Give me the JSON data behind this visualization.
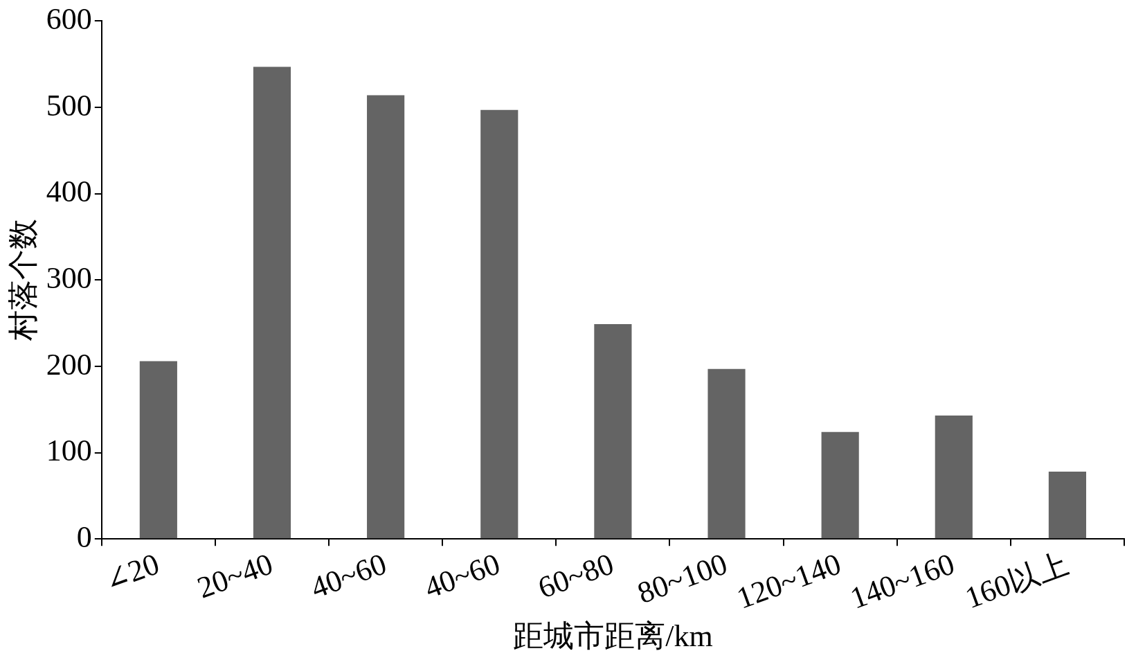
{
  "chart_data": {
    "type": "bar",
    "xlabel": "距城市距离/km",
    "ylabel": "村落个数",
    "categories": [
      "∠20",
      "20~40",
      "40~60",
      "40~60",
      "60~80",
      "80~100",
      "120~140",
      "140~160",
      "160以上"
    ],
    "values": [
      206,
      547,
      514,
      497,
      249,
      197,
      124,
      143,
      78
    ],
    "color": "#646464",
    "ylim": [
      0,
      600
    ],
    "yticks": [
      0,
      100,
      200,
      300,
      400,
      500,
      600
    ]
  }
}
